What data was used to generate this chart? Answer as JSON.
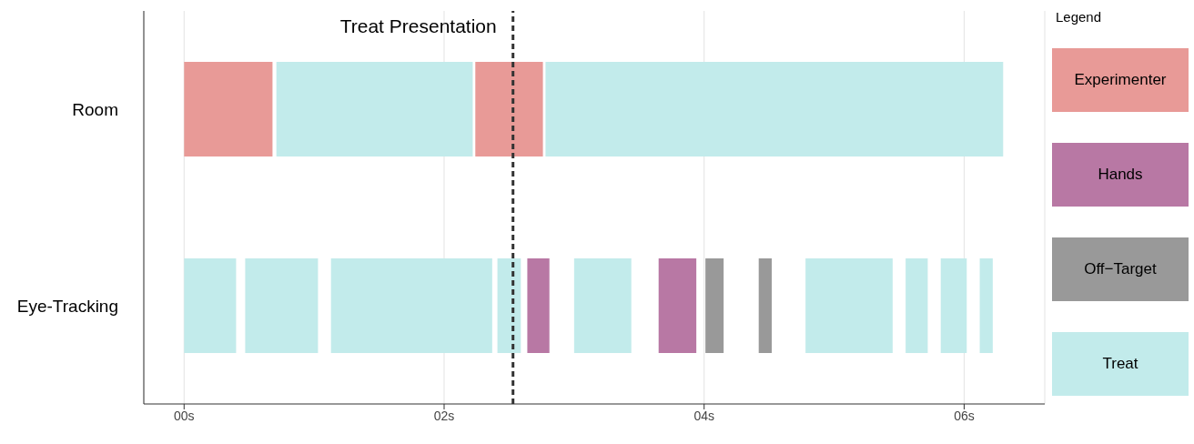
{
  "chart_data": {
    "type": "bar",
    "orientation": "horizontal",
    "categories": [
      "Room",
      "Eye-Tracking"
    ],
    "xlim": [
      -0.31,
      6.62
    ],
    "xticks": [
      {
        "value": 0,
        "label": "00s"
      },
      {
        "value": 2,
        "label": "02s"
      },
      {
        "value": 4,
        "label": "04s"
      },
      {
        "value": 6,
        "label": "06s"
      }
    ],
    "grid": "x",
    "legend": "right",
    "legend_title": "Legend",
    "ref_lines": [
      {
        "axis": "x",
        "value": 2.53,
        "label": "Treat Presentation",
        "line_style": "dashed",
        "color": "#333333"
      }
    ],
    "series": [
      {
        "name": "Experimenter",
        "color": "#e89a97",
        "values": [
          0.68,
          null
        ],
        "base": [
          0,
          null
        ]
      },
      {
        "color": "#e89a97",
        "values": [
          0.52,
          null
        ],
        "base": [
          2.24,
          null
        ]
      },
      {
        "name": "Hands",
        "color": "#b878a4",
        "values": [
          null,
          0.17
        ],
        "base": [
          null,
          2.64
        ]
      },
      {
        "color": "#b878a4",
        "values": [
          null,
          0.29
        ],
        "base": [
          null,
          3.65
        ]
      },
      {
        "name": "Off−Target",
        "color": "#999999",
        "values": [
          null,
          0.14
        ],
        "base": [
          null,
          4.01
        ]
      },
      {
        "color": "#999999",
        "values": [
          null,
          0.1
        ],
        "base": [
          null,
          4.42
        ]
      },
      {
        "name": "Treat",
        "color": "#c2ebeb",
        "values": [
          1.51,
          0.4
        ],
        "base": [
          0.71,
          0
        ]
      },
      {
        "color": "#c2ebeb",
        "values": [
          3.52,
          0.56
        ],
        "base": [
          2.78,
          0.47
        ]
      },
      {
        "color": "#c2ebeb",
        "values": [
          null,
          1.24
        ],
        "base": [
          null,
          1.13
        ]
      },
      {
        "color": "#c2ebeb",
        "values": [
          null,
          0.18
        ],
        "base": [
          null,
          2.41
        ]
      },
      {
        "color": "#c2ebeb",
        "values": [
          null,
          0.44
        ],
        "base": [
          null,
          3.0
        ]
      },
      {
        "color": "#c2ebeb",
        "values": [
          null,
          0.67
        ],
        "base": [
          null,
          4.78
        ]
      },
      {
        "color": "#c2ebeb",
        "values": [
          null,
          0.17
        ],
        "base": [
          null,
          5.55
        ]
      },
      {
        "color": "#c2ebeb",
        "values": [
          null,
          0.2
        ],
        "base": [
          null,
          5.82
        ]
      },
      {
        "color": "#c2ebeb",
        "values": [
          null,
          0.1
        ],
        "base": [
          null,
          6.12
        ]
      }
    ]
  }
}
